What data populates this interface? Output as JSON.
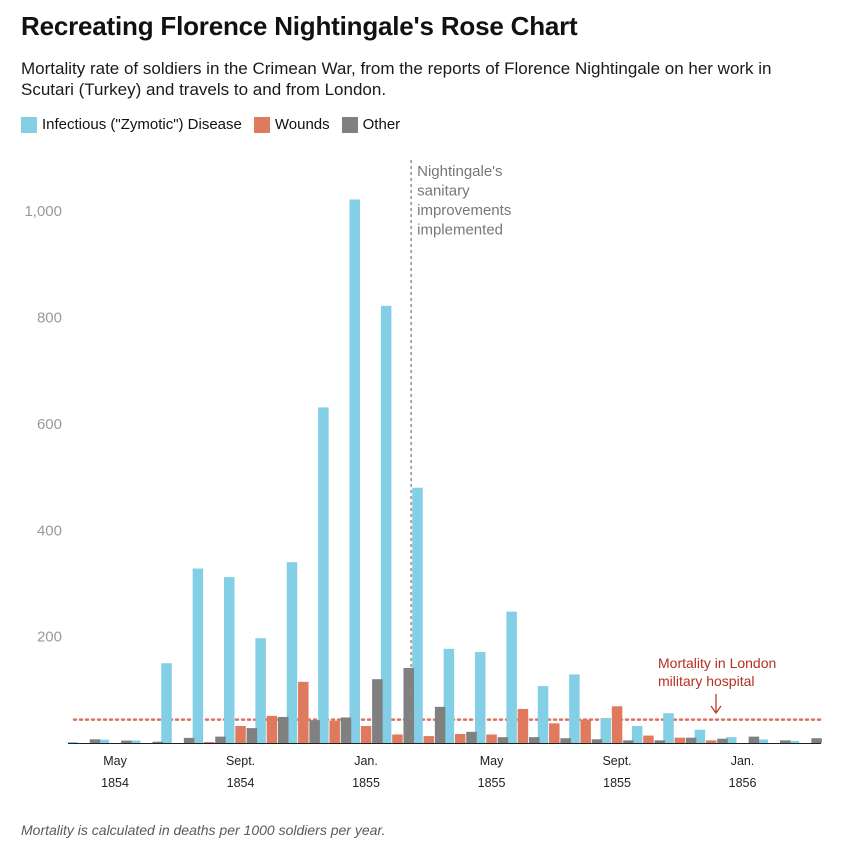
{
  "title": "Recreating Florence Nightingale's Rose Chart",
  "subtitle": "Mortality rate of soldiers in the Crimean War, from the reports of Florence Nightingale on her work in Scutari (Turkey) and travels to and from London.",
  "footnote": "Mortality is calculated in deaths per 1000 soldiers per year.",
  "legend": [
    {
      "label": "Infectious (\"Zymotic\") Disease",
      "color": "#82cfe6"
    },
    {
      "label": "Wounds",
      "color": "#e07a5f"
    },
    {
      "label": "Other",
      "color": "#808080"
    }
  ],
  "chart_data": {
    "type": "bar",
    "categories": [
      "Apr 1854",
      "May 1854",
      "Jun 1854",
      "Jul 1854",
      "Aug 1854",
      "Sep 1854",
      "Oct 1854",
      "Nov 1854",
      "Dec 1854",
      "Jan 1855",
      "Feb 1855",
      "Mar 1855",
      "Apr 1855",
      "May 1855",
      "Jun 1855",
      "Jul 1855",
      "Aug 1855",
      "Sep 1855",
      "Oct 1855",
      "Nov 1855",
      "Dec 1855",
      "Jan 1856",
      "Feb 1856",
      "Mar 1856"
    ],
    "series": [
      {
        "name": "Infectious (\"Zymotic\") Disease",
        "color": "#82cfe6",
        "values": [
          1.4,
          6.2,
          4.7,
          150,
          328,
          312,
          197,
          340,
          631,
          1022,
          822,
          480,
          177,
          171,
          247,
          107,
          129,
          47,
          32,
          56,
          25,
          11,
          6.6,
          3.9
        ]
      },
      {
        "name": "Wounds",
        "color": "#e07a5f",
        "values": [
          0,
          0,
          0,
          0,
          0.4,
          32,
          51,
          115,
          42,
          32,
          16,
          13,
          17,
          16,
          64,
          37,
          44,
          69,
          14,
          10,
          5,
          0,
          0,
          0
        ]
      },
      {
        "name": "Other",
        "color": "#808080",
        "values": [
          7,
          4.6,
          2.5,
          9.6,
          12,
          28,
          49,
          43,
          48,
          120,
          141,
          68,
          21,
          11,
          11,
          9,
          7,
          5,
          5,
          10,
          8,
          12,
          5,
          9
        ]
      }
    ],
    "x_tick_labels": [
      {
        "category": "May 1854",
        "month": "May",
        "year": "1854"
      },
      {
        "category": "Sep 1854",
        "month": "Sept.",
        "year": "1854"
      },
      {
        "category": "Jan 1855",
        "month": "Jan.",
        "year": "1855"
      },
      {
        "category": "May 1855",
        "month": "May",
        "year": "1855"
      },
      {
        "category": "Sep 1855",
        "month": "Sept.",
        "year": "1855"
      },
      {
        "category": "Jan 1856",
        "month": "Jan.",
        "year": "1856"
      }
    ],
    "y_ticks": [
      "200",
      "400",
      "600",
      "800",
      "1,000"
    ],
    "y_tick_values": [
      200,
      400,
      600,
      800,
      1000
    ],
    "ylim": [
      0,
      1100
    ],
    "grid": false,
    "legend_position": "top-left",
    "xlabel": "",
    "ylabel": "",
    "annotations": {
      "sanitary": {
        "text": [
          "Nightingale's",
          "sanitary",
          "improvements",
          "implemented"
        ],
        "between": [
          "Feb 1855",
          "Mar 1855"
        ],
        "color": "#888888"
      },
      "london": {
        "text": [
          "Mortality in London",
          "military hospital"
        ],
        "value": 44,
        "color": "#c0392b"
      }
    }
  }
}
